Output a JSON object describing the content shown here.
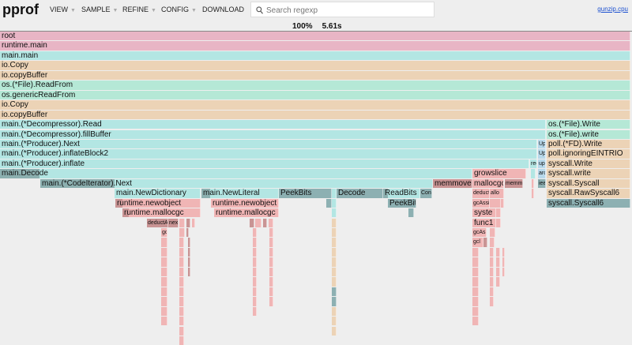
{
  "header": {
    "logo": "pprof",
    "menu": [
      {
        "label": "VIEW",
        "dropdown": true
      },
      {
        "label": "SAMPLE",
        "dropdown": true
      },
      {
        "label": "REFINE",
        "dropdown": true
      },
      {
        "label": "CONFIG",
        "dropdown": true
      },
      {
        "label": "DOWNLOAD",
        "dropdown": false
      }
    ],
    "search_placeholder": "Search regexp",
    "search_value": "",
    "profile_link": "gunzip.cpu"
  },
  "summary": {
    "percent": "100%",
    "total": "5.61s"
  },
  "colors": {
    "pink": "#e8b5c5",
    "pink_dark": "#c99aa8",
    "cyan": "#b3e6e3",
    "cyan_dark": "#8cb0b0",
    "tan": "#ecd3b6",
    "mint": "#b5e8d6",
    "salmon": "#f0b5b5",
    "salmon_dark": "#c99494",
    "blue": "#b7d8ea",
    "teal": "#8db0b2"
  },
  "frames": [
    "root",
    "runtime.main",
    "main.main",
    "io.Copy",
    "io.copyBuffer",
    "os.(*File).ReadFrom",
    "os.genericReadFrom",
    "io.Copy",
    "io.copyBuffer",
    "main.(*Decompressor).Read",
    "os.(*File).Write",
    "main.(*Decompressor).fillBuffer",
    "os.(*File).write",
    "main.(*Producer).Next",
    "Upo",
    "poll.(*FD).Write",
    "main.(*Producer).inflateBlock2",
    "Upo",
    "poll.ignoringEINTRIO",
    "main.(*Producer).inflate",
    "rec",
    "upd",
    "syscall.Write",
    "main.Decode",
    "growslice",
    "arc",
    "syscall.write",
    "main.(*CodeIterator).Next",
    "memmove",
    "mallocgc",
    "memm",
    "iee",
    "syscall.Syscall",
    "main.NewDictionary",
    "main.NewLiteral",
    "PeekBits",
    "Decode",
    "ReadBits",
    "Cons",
    "deductA",
    "allo",
    "syscall.RawSyscall6",
    "runtime.newobject",
    "runtime.newobject",
    "PeekBits",
    "gcAssis",
    "syscall.Syscall6",
    "runtime.mallocgc",
    "runtime.mallocgc",
    "syste",
    "deductA",
    "nex",
    "func1",
    "gc",
    "gcAs",
    "gcl"
  ]
}
